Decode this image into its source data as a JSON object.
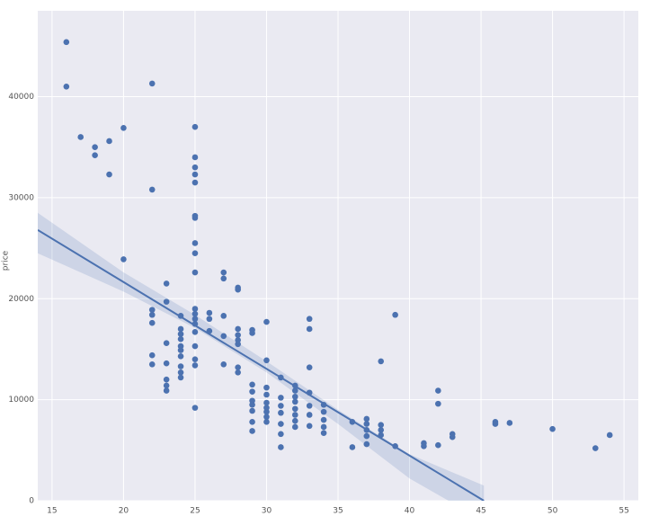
{
  "chart_data": {
    "type": "scatter",
    "y_label": "price",
    "color": "#4c72b0",
    "background": "#eaeaf2",
    "grid": true,
    "xlim": [
      14,
      56
    ],
    "ylim": [
      0,
      48500
    ],
    "xticks": [
      15,
      20,
      25,
      30,
      35,
      40,
      45,
      50,
      55
    ],
    "yticks": [
      0,
      10000,
      20000,
      30000,
      40000
    ],
    "series": [
      {
        "x": [
          16,
          16,
          17,
          18,
          18,
          19,
          19,
          20,
          20,
          22,
          22,
          22,
          22,
          22,
          22,
          22,
          23,
          23,
          23,
          23,
          23,
          23,
          23,
          24,
          24,
          24,
          24,
          24,
          24,
          24,
          24,
          24,
          24,
          25,
          25,
          25,
          25,
          25,
          25,
          25,
          25,
          25,
          25,
          25,
          25,
          25,
          25,
          25,
          25,
          25,
          25,
          25,
          26,
          26,
          26,
          27,
          27,
          27,
          27,
          27,
          28,
          28,
          28,
          28,
          28,
          28,
          28,
          28,
          29,
          29,
          29,
          29,
          29,
          29,
          29,
          29,
          29,
          30,
          30,
          30,
          30,
          30,
          30,
          30,
          30,
          30,
          31,
          31,
          31,
          31,
          31,
          31,
          31,
          32,
          32,
          32,
          32,
          32,
          32,
          32,
          32,
          33,
          33,
          33,
          33,
          33,
          33,
          33,
          34,
          34,
          34,
          34,
          34,
          36,
          36,
          37,
          37,
          37,
          37,
          37,
          38,
          38,
          38,
          38,
          39,
          39,
          41,
          41,
          42,
          42,
          42,
          43,
          43,
          46,
          46,
          47,
          50,
          53,
          54
        ],
        "values": [
          45400,
          41000,
          36000,
          35000,
          34200,
          35600,
          32300,
          36900,
          23900,
          41300,
          30800,
          18900,
          18400,
          17600,
          14400,
          13500,
          21500,
          19700,
          15600,
          13600,
          12000,
          11400,
          10900,
          18300,
          17000,
          16500,
          16000,
          15300,
          14900,
          14300,
          13300,
          12700,
          12200,
          37000,
          34000,
          33000,
          32300,
          31500,
          28200,
          28000,
          25500,
          24500,
          22600,
          19000,
          18500,
          18000,
          17500,
          16700,
          15300,
          14000,
          13400,
          9200,
          18600,
          18000,
          16800,
          22600,
          22000,
          18300,
          16300,
          13500,
          21100,
          20900,
          17000,
          16400,
          15900,
          15500,
          13200,
          12700,
          16900,
          16600,
          11500,
          10800,
          9900,
          9500,
          8900,
          7800,
          6900,
          17700,
          13900,
          11200,
          10500,
          9700,
          9200,
          8800,
          8300,
          7800,
          12200,
          10200,
          9400,
          8700,
          7600,
          6600,
          5300,
          11400,
          10900,
          10300,
          9800,
          9100,
          8500,
          7900,
          7300,
          18000,
          17000,
          13200,
          10700,
          9400,
          8500,
          7400,
          9500,
          8800,
          8000,
          7300,
          6700,
          7800,
          5300,
          8100,
          7600,
          7000,
          6400,
          5600,
          13800,
          7500,
          7000,
          6500,
          18400,
          5400,
          5700,
          5400,
          10900,
          9600,
          5500,
          6600,
          6300,
          7800,
          7600,
          7700,
          7100,
          5200,
          6500
        ]
      }
    ],
    "trend_line": {
      "x": [
        14,
        45.2
      ],
      "values": [
        26800,
        0
      ]
    },
    "confidence_band": {
      "x": [
        14,
        20,
        25,
        30,
        35,
        40,
        45.2
      ],
      "upper": [
        28500,
        22600,
        18400,
        13800,
        9000,
        4600,
        1500
      ],
      "lower": [
        24500,
        20700,
        17100,
        12700,
        7600,
        2200,
        -2000
      ]
    }
  }
}
